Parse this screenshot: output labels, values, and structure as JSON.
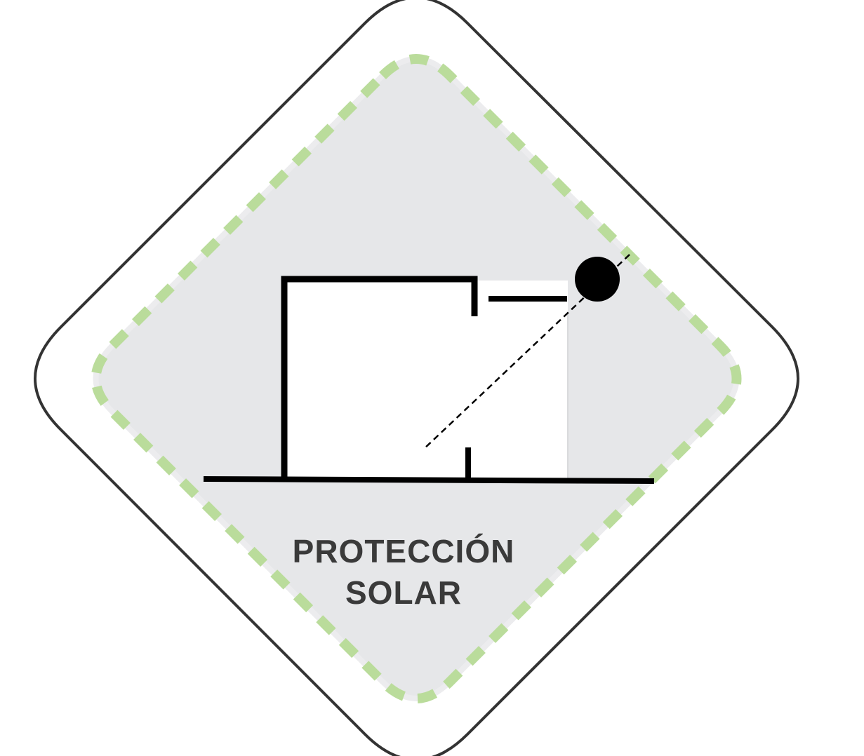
{
  "badge": {
    "title_line1": "PROTECCIÓN",
    "title_line2": "SOLAR"
  },
  "colors": {
    "outline": "#333333",
    "fill": "#e6e7e9",
    "dashed_border": "#badc9b",
    "walls": "#000000",
    "interior": "#ffffff",
    "text": "#3a3a3a"
  },
  "icons": {
    "sun": "sun-icon",
    "building": "building-section-icon"
  }
}
